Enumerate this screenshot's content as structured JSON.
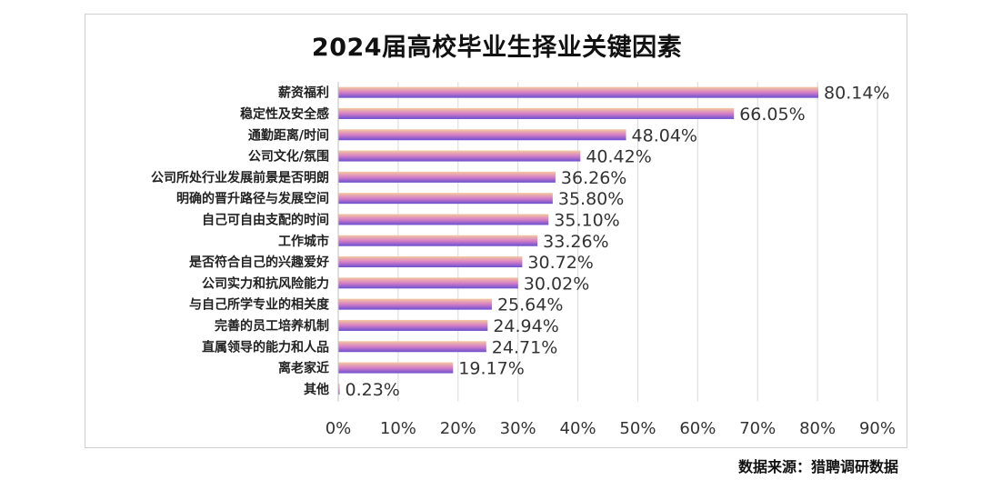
{
  "chart_data": {
    "type": "bar",
    "orientation": "horizontal",
    "title": "2024届高校毕业生择业关键因素",
    "categories": [
      "薪资福利",
      "稳定性及安全感",
      "通勤距离/时间",
      "公司文化/氛围",
      "公司所处行业发展前景是否明朗",
      "明确的晋升路径与发展空间",
      "自己可自由支配的时间",
      "工作城市",
      "是否符合自己的兴趣爱好",
      "公司实力和抗风险能力",
      "与自己所学专业的相关度",
      "完善的员工培养机制",
      "直属领导的能力和人品",
      "离老家近",
      "其他"
    ],
    "values": [
      80.14,
      66.05,
      48.04,
      40.42,
      36.26,
      35.8,
      35.1,
      33.26,
      30.72,
      30.02,
      25.64,
      24.94,
      24.71,
      19.17,
      0.23
    ],
    "value_labels": [
      "80.14%",
      "66.05%",
      "48.04%",
      "40.42%",
      "36.26%",
      "35.80%",
      "35.10%",
      "33.26%",
      "30.72%",
      "30.02%",
      "25.64%",
      "24.94%",
      "24.71%",
      "19.17%",
      "0.23%"
    ],
    "xlim": [
      0,
      90
    ],
    "xticks": [
      "0%",
      "10%",
      "20%",
      "30%",
      "40%",
      "50%",
      "60%",
      "70%",
      "80%",
      "90%"
    ],
    "grid": "vertical",
    "colors": {
      "bar_top": "#f4c8a0",
      "bar_mid": "#d67fc6",
      "bar_bottom": "#6a4fd0",
      "grid": "#d9d9d9",
      "text": "#333333"
    }
  },
  "source": "数据来源：猎聘调研数据"
}
